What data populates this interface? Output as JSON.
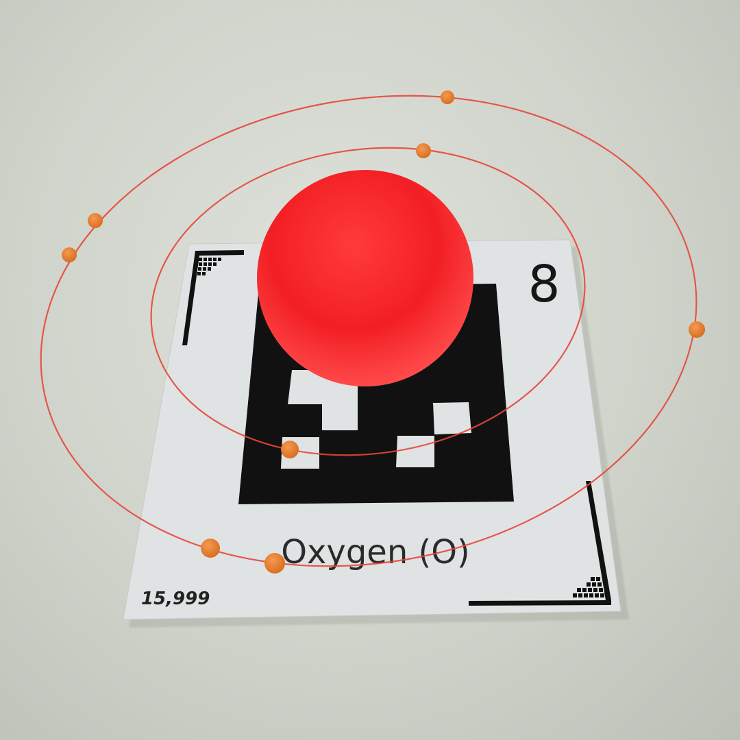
{
  "card": {
    "atomic_number": "8",
    "element_name": "Oxygen (O)",
    "atomic_mass": "15,999"
  },
  "colors": {
    "nucleus": "#ff2a2a",
    "orbit": "#e8463a",
    "electron": "#e07a2c",
    "card_background": "#dfe3e4",
    "marker_black": "#111111"
  },
  "atom_model": {
    "shells": [
      {
        "electrons": 2
      },
      {
        "electrons": 6
      }
    ]
  }
}
